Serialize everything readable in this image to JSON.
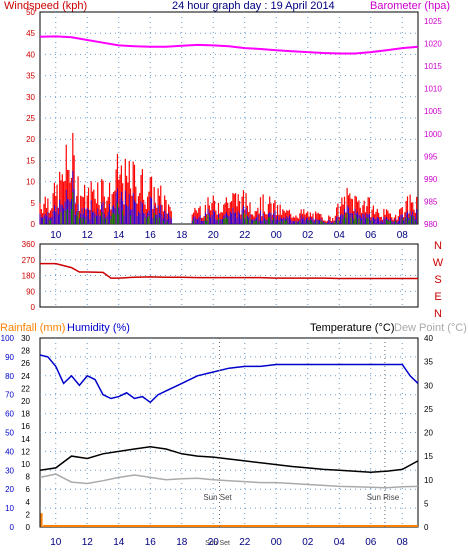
{
  "header": {
    "windspeed_label": "Windspeed (kph)",
    "title": "24 hour graph day : 19 April 2014",
    "barometer_label": "Barometer (hpa)"
  },
  "mid_header": {
    "rainfall_label": "Rainfall (mm)",
    "humidity_label": "Humidity (%)",
    "temperature_label": "Temperature (°C)",
    "dewpoint_label": "Dew Point (°C)"
  },
  "colors": {
    "wind_max": "#ff0000",
    "wind_avg": "#0000ff",
    "wind_min": "#008000",
    "barometer": "#ff00ff",
    "direction": "#cc0000",
    "humidity": "#0000cc",
    "temperature": "#000000",
    "dewpoint": "#aaaaaa",
    "rainfall": "#ff8000",
    "axis_left_top": "#cc0000",
    "axis_right_top": "#cc00cc",
    "axis_left_bottom": "#0000cc"
  },
  "chart_data": [
    {
      "type": "line",
      "title": "24 hour graph day : 19 April 2014",
      "x_tick_labels": [
        "10",
        "12",
        "14",
        "16",
        "18",
        "20",
        "22",
        "00",
        "02",
        "04",
        "06",
        "08"
      ],
      "left_axis": {
        "label": "Windspeed (kph)",
        "ticks": [
          0,
          5,
          10,
          15,
          20,
          25,
          30,
          35,
          40,
          45,
          50
        ],
        "ylim": [
          0,
          50
        ]
      },
      "right_axis": {
        "label": "Barometer (hpa)",
        "ticks": [
          980,
          985,
          990,
          995,
          1000,
          1005,
          1010,
          1015,
          1020,
          1025
        ],
        "ylim": [
          980,
          1027
        ]
      },
      "series": [
        {
          "name": "Windspeed (kph)",
          "kind": "gust",
          "x": [
            9.0,
            10.0,
            10.5,
            11.0,
            11.5,
            12.0,
            12.5,
            13.0,
            13.5,
            14.0,
            14.5,
            15.0,
            15.5,
            16.0,
            16.5,
            17.0,
            17.5,
            18.5,
            19.5,
            20.5,
            21.5,
            22.5,
            23.5,
            0.5,
            1.5,
            2.5,
            3.5,
            4.5,
            5.5,
            6.5,
            7.5,
            8.5,
            9.0
          ],
          "values": [
            8,
            10,
            17,
            24,
            12,
            9,
            14,
            13,
            10,
            18,
            15,
            16,
            14,
            12,
            10,
            8,
            1,
            5,
            6,
            8,
            9,
            7,
            7,
            4,
            4,
            3,
            2,
            9,
            8,
            4,
            3,
            8,
            11
          ]
        },
        {
          "name": "Barometer (hpa)",
          "x": [
            9.0,
            10.0,
            11.0,
            12.0,
            13.0,
            14.0,
            15.0,
            16.0,
            17.0,
            18.0,
            19.0,
            20.0,
            21.0,
            22.0,
            23.0,
            0.0,
            1.0,
            2.0,
            3.0,
            4.0,
            5.0,
            6.0,
            7.0,
            8.0,
            9.0
          ],
          "values": [
            1021.5,
            1021.6,
            1021.4,
            1020.8,
            1020.2,
            1019.6,
            1019.4,
            1019.3,
            1019.3,
            1019.5,
            1019.7,
            1019.6,
            1019.4,
            1019.0,
            1018.8,
            1018.5,
            1018.3,
            1018.1,
            1017.9,
            1017.8,
            1017.8,
            1018.1,
            1018.5,
            1019.0,
            1019.3
          ]
        }
      ]
    },
    {
      "type": "line",
      "left_axis": {
        "ticks": [
          0,
          90,
          180,
          270,
          360
        ],
        "ylim": [
          0,
          360
        ]
      },
      "right_axis_labels": [
        "N",
        "W",
        "S",
        "E",
        "N"
      ],
      "series": [
        {
          "name": "Wind direction",
          "x": [
            9.0,
            10.0,
            11.0,
            11.5,
            12.0,
            13.0,
            13.5,
            14.0,
            15.0,
            16.0,
            17.0,
            18.0,
            19.0,
            20.0,
            21.0,
            22.0,
            23.0,
            0.0,
            1.0,
            2.0,
            3.0,
            4.0,
            5.0,
            6.0,
            7.0,
            8.0,
            9.0
          ],
          "values": [
            248,
            248,
            225,
            200,
            200,
            198,
            165,
            165,
            170,
            172,
            170,
            170,
            168,
            168,
            168,
            168,
            168,
            165,
            165,
            165,
            165,
            163,
            163,
            163,
            163,
            163,
            163
          ]
        }
      ]
    },
    {
      "type": "line",
      "left_axis_humidity": {
        "label": "Humidity (%)",
        "ticks": [
          0,
          10,
          20,
          30,
          40,
          50,
          60,
          70,
          80,
          90,
          100
        ],
        "ylim": [
          0,
          100
        ]
      },
      "left_axis_rainfall": {
        "label": "Rainfall (mm)",
        "ticks": [
          0,
          2,
          4,
          6,
          8,
          10,
          12,
          14,
          16,
          18,
          20,
          22,
          24,
          26,
          28,
          30
        ],
        "ylim": [
          0,
          30
        ]
      },
      "right_axis": {
        "label": "Temperature (°C)",
        "ticks": [
          0,
          5,
          10,
          15,
          20,
          25,
          30,
          35,
          40
        ],
        "ylim": [
          0,
          40
        ]
      },
      "annotations": [
        "Sun Set",
        "Sun Rise"
      ],
      "series": [
        {
          "name": "Humidity (%)",
          "x": [
            9.0,
            9.5,
            10.0,
            10.5,
            11.0,
            11.5,
            12.0,
            12.5,
            13.0,
            13.5,
            14.0,
            14.5,
            15.0,
            15.5,
            16.0,
            16.5,
            17.0,
            18.0,
            19.0,
            20.0,
            21.0,
            22.0,
            23.0,
            0.0,
            1.0,
            2.0,
            3.0,
            4.0,
            5.0,
            6.0,
            7.0,
            7.5,
            8.0,
            8.5,
            9.0
          ],
          "values": [
            91,
            90,
            85,
            76,
            80,
            75,
            80,
            78,
            70,
            68,
            69,
            71,
            68,
            69,
            66,
            70,
            72,
            76,
            80,
            82,
            84,
            85,
            85,
            86,
            86,
            86,
            86,
            86,
            86,
            86,
            86,
            86,
            86,
            80,
            76
          ]
        },
        {
          "name": "Temperature (°C)",
          "x": [
            9.0,
            10.0,
            11.0,
            12.0,
            13.0,
            14.0,
            15.0,
            16.0,
            17.0,
            18.0,
            19.0,
            20.0,
            21.0,
            22.0,
            23.0,
            0.0,
            1.0,
            2.0,
            3.0,
            4.0,
            5.0,
            6.0,
            7.0,
            8.0,
            9.0
          ],
          "values": [
            12,
            12.5,
            15,
            14.5,
            15.5,
            16,
            16.5,
            17,
            16.5,
            15.5,
            15,
            14.8,
            14.4,
            14,
            13.6,
            13.2,
            12.8,
            12.5,
            12.2,
            12,
            11.8,
            11.6,
            11.8,
            12.2,
            14
          ]
        },
        {
          "name": "Dew Point (°C)",
          "x": [
            9.0,
            10.0,
            11.0,
            12.0,
            13.0,
            14.0,
            15.0,
            16.0,
            17.0,
            18.0,
            19.0,
            20.0,
            21.0,
            22.0,
            23.0,
            0.0,
            1.0,
            2.0,
            3.0,
            4.0,
            5.0,
            6.0,
            7.0,
            8.0,
            9.0
          ],
          "values": [
            10.5,
            11.2,
            9.5,
            9.2,
            9.8,
            10.5,
            11,
            10.5,
            10,
            10.2,
            10.3,
            10,
            9.8,
            9.6,
            9.4,
            9.4,
            9.2,
            9,
            8.8,
            8.6,
            8.5,
            8.4,
            8.3,
            8.5,
            8.6
          ]
        },
        {
          "name": "Rainfall (mm)",
          "x": [
            9.0,
            9.1,
            9.2,
            9.3,
            10.0,
            22.0,
            9.0
          ],
          "values": [
            2,
            2,
            0.2,
            0.1,
            0.1,
            0.3,
            0.3
          ]
        }
      ]
    }
  ],
  "annotations": {
    "sunset": "Sun Set",
    "sunrise": "Sun Rise"
  },
  "direction_labels": [
    "N",
    "W",
    "S",
    "E",
    "N"
  ]
}
